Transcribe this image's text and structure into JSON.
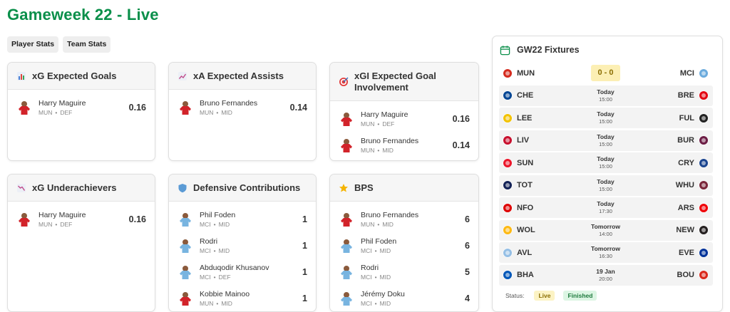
{
  "page": {
    "title": "Gameweek 22 - Live"
  },
  "tabs": [
    {
      "label": "Player Stats"
    },
    {
      "label": "Team Stats"
    }
  ],
  "cards": [
    {
      "id": "xg",
      "title": "xG Expected Goals",
      "icon": "bar-chart-icon",
      "rows": [
        {
          "name": "Harry Maguire",
          "team": "MUN",
          "pos": "DEF",
          "value": "0.16",
          "kit": "red"
        }
      ]
    },
    {
      "id": "xa",
      "title": "xA Expected Assists",
      "icon": "trend-chart-icon",
      "rows": [
        {
          "name": "Bruno Fernandes",
          "team": "MUN",
          "pos": "MID",
          "value": "0.14",
          "kit": "red"
        }
      ]
    },
    {
      "id": "xgi",
      "title": "xGI Expected Goal Involvement",
      "icon": "target-icon",
      "rows": [
        {
          "name": "Harry Maguire",
          "team": "MUN",
          "pos": "DEF",
          "value": "0.16",
          "kit": "red"
        },
        {
          "name": "Bruno Fernandes",
          "team": "MUN",
          "pos": "MID",
          "value": "0.14",
          "kit": "red"
        }
      ]
    },
    {
      "id": "xgu",
      "title": "xG Underachievers",
      "icon": "down-chart-icon",
      "rows": [
        {
          "name": "Harry Maguire",
          "team": "MUN",
          "pos": "DEF",
          "value": "0.16",
          "kit": "red"
        }
      ]
    },
    {
      "id": "def",
      "title": "Defensive Contributions",
      "icon": "shield-icon",
      "rows": [
        {
          "name": "Phil Foden",
          "team": "MCI",
          "pos": "MID",
          "value": "1",
          "kit": "blue"
        },
        {
          "name": "Rodri",
          "team": "MCI",
          "pos": "MID",
          "value": "1",
          "kit": "blue"
        },
        {
          "name": "Abduqodir Khusanov",
          "team": "MCI",
          "pos": "DEF",
          "value": "1",
          "kit": "blue"
        },
        {
          "name": "Kobbie Mainoo",
          "team": "MUN",
          "pos": "MID",
          "value": "1",
          "kit": "red"
        }
      ]
    },
    {
      "id": "bps",
      "title": "BPS",
      "icon": "star-icon",
      "rows": [
        {
          "name": "Bruno Fernandes",
          "team": "MUN",
          "pos": "MID",
          "value": "6",
          "kit": "red"
        },
        {
          "name": "Phil Foden",
          "team": "MCI",
          "pos": "MID",
          "value": "6",
          "kit": "blue"
        },
        {
          "name": "Rodri",
          "team": "MCI",
          "pos": "MID",
          "value": "5",
          "kit": "blue"
        },
        {
          "name": "Jérémy Doku",
          "team": "MCI",
          "pos": "MID",
          "value": "4",
          "kit": "blue"
        }
      ]
    }
  ],
  "fixtures": {
    "title": "GW22 Fixtures",
    "icon": "calendar-icon",
    "rows": [
      {
        "home": "MUN",
        "away": "MCI",
        "score": "0 - 0",
        "day": "",
        "time": "",
        "live": true,
        "homeColor": "#d52b1e",
        "awayColor": "#6cabdd"
      },
      {
        "home": "CHE",
        "away": "BRE",
        "score": "",
        "day": "Today",
        "time": "15:00",
        "live": false,
        "homeColor": "#034694",
        "awayColor": "#e30613"
      },
      {
        "home": "LEE",
        "away": "FUL",
        "score": "",
        "day": "Today",
        "time": "15:00",
        "live": false,
        "homeColor": "#f2c200",
        "awayColor": "#222222"
      },
      {
        "home": "LIV",
        "away": "BUR",
        "score": "",
        "day": "Today",
        "time": "15:00",
        "live": false,
        "homeColor": "#c8102e",
        "awayColor": "#6c1d45"
      },
      {
        "home": "SUN",
        "away": "CRY",
        "score": "",
        "day": "Today",
        "time": "15:00",
        "live": false,
        "homeColor": "#eb172b",
        "awayColor": "#1b458f"
      },
      {
        "home": "TOT",
        "away": "WHU",
        "score": "",
        "day": "Today",
        "time": "15:00",
        "live": false,
        "homeColor": "#132257",
        "awayColor": "#7a263a"
      },
      {
        "home": "NFO",
        "away": "ARS",
        "score": "",
        "day": "Today",
        "time": "17:30",
        "live": false,
        "homeColor": "#dd0000",
        "awayColor": "#ef0107"
      },
      {
        "home": "WOL",
        "away": "NEW",
        "score": "",
        "day": "Tomorrow",
        "time": "14:00",
        "live": false,
        "homeColor": "#fdb913",
        "awayColor": "#241f20"
      },
      {
        "home": "AVL",
        "away": "EVE",
        "score": "",
        "day": "Tomorrow",
        "time": "16:30",
        "live": false,
        "homeColor": "#95bfe5",
        "awayColor": "#003399"
      },
      {
        "home": "BHA",
        "away": "BOU",
        "score": "",
        "day": "19 Jan",
        "time": "20:00",
        "live": false,
        "homeColor": "#0057b8",
        "awayColor": "#da291c"
      }
    ],
    "status": {
      "label": "Status:",
      "live": "Live",
      "finished": "Finished"
    }
  },
  "colors": {
    "accent": "#0a8f4a",
    "kitRed": "#c8102e",
    "kitBlue": "#6cabdd",
    "liveScoreBg": "#fcefb4"
  }
}
